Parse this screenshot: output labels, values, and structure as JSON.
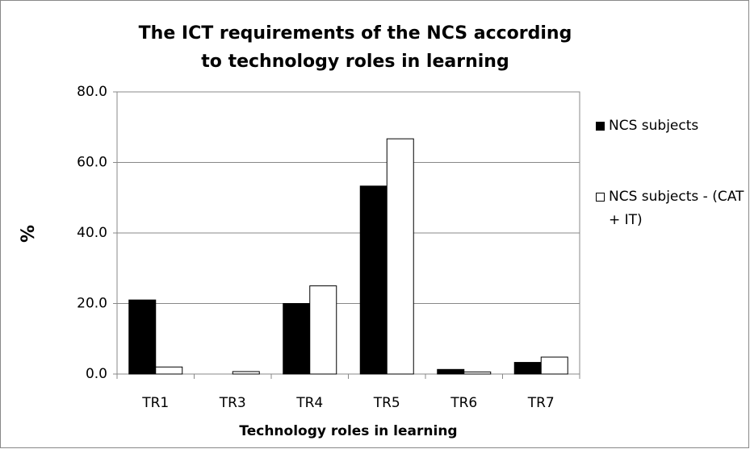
{
  "chart_data": {
    "type": "bar",
    "title": "The ICT requirements of the NCS according to technology roles in learning",
    "x_label": "Technology roles in learning",
    "y_label": "%",
    "categories": [
      "TR1",
      "TR3",
      "TR4",
      "TR5",
      "TR6",
      "TR7"
    ],
    "series": [
      {
        "name": "NCS subjects",
        "color": "#000000",
        "values": [
          21.0,
          0,
          20.0,
          53.3,
          1.3,
          3.3
        ]
      },
      {
        "name": "NCS subjects - (CAT + IT)",
        "color": "#ffffff",
        "values": [
          2.0,
          0.7,
          25.0,
          66.7,
          0.6,
          4.8
        ]
      }
    ],
    "ylim": [
      0,
      80
    ],
    "yticks": [
      {
        "value": 0,
        "label": "0.0"
      },
      {
        "value": 20,
        "label": "20.0"
      },
      {
        "value": 40,
        "label": "40.0"
      },
      {
        "value": 60,
        "label": "60.0"
      },
      {
        "value": 80,
        "label": "80.0"
      }
    ],
    "grid": true,
    "legend": "right"
  }
}
